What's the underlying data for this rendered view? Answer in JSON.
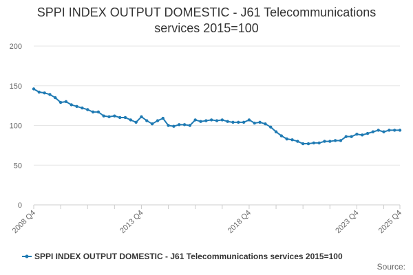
{
  "chart_data": {
    "type": "line",
    "title_lines": [
      "SPPI INDEX OUTPUT DOMESTIC - J61 Telecommunications",
      "services 2015=100"
    ],
    "ylim": [
      0,
      200
    ],
    "y_ticks": [
      0,
      50,
      100,
      150,
      200
    ],
    "x_tick_labels": [
      "2008 Q4",
      "2013 Q4",
      "2018 Q4",
      "2023 Q4",
      "2025 Q4"
    ],
    "x_tick_indices": [
      0,
      20,
      40,
      60,
      68
    ],
    "grid": true,
    "legend_position": "bottom",
    "series": [
      {
        "name": "SPPI INDEX OUTPUT DOMESTIC - J61 Telecommunications services 2015=100",
        "color": "#1f7ab3",
        "x": [
          "2008 Q4",
          "2009 Q1",
          "2009 Q2",
          "2009 Q3",
          "2009 Q4",
          "2010 Q1",
          "2010 Q2",
          "2010 Q3",
          "2010 Q4",
          "2011 Q1",
          "2011 Q2",
          "2011 Q3",
          "2011 Q4",
          "2012 Q1",
          "2012 Q2",
          "2012 Q3",
          "2012 Q4",
          "2013 Q1",
          "2013 Q2",
          "2013 Q3",
          "2013 Q4",
          "2014 Q1",
          "2014 Q2",
          "2014 Q3",
          "2014 Q4",
          "2015 Q1",
          "2015 Q2",
          "2015 Q3",
          "2015 Q4",
          "2016 Q1",
          "2016 Q2",
          "2016 Q3",
          "2016 Q4",
          "2017 Q1",
          "2017 Q2",
          "2017 Q3",
          "2017 Q4",
          "2018 Q1",
          "2018 Q2",
          "2018 Q3",
          "2018 Q4",
          "2019 Q1",
          "2019 Q2",
          "2019 Q3",
          "2019 Q4",
          "2020 Q1",
          "2020 Q2",
          "2020 Q3",
          "2020 Q4",
          "2021 Q1",
          "2021 Q2",
          "2021 Q3",
          "2021 Q4",
          "2022 Q1",
          "2022 Q2",
          "2022 Q3",
          "2022 Q4",
          "2023 Q1",
          "2023 Q2",
          "2023 Q3",
          "2023 Q4",
          "2024 Q1",
          "2024 Q2",
          "2024 Q3",
          "2024 Q4",
          "2025 Q1",
          "2025 Q2",
          "2025 Q3",
          "2025 Q4"
        ],
        "values": [
          146,
          142,
          141,
          139,
          135,
          129,
          130,
          126,
          124,
          122,
          120,
          117,
          117,
          112,
          111,
          112,
          110,
          110,
          107,
          104,
          111,
          106,
          102,
          106,
          109,
          100,
          99,
          101,
          101,
          100,
          107,
          105,
          106,
          107,
          106,
          107,
          105,
          104,
          104,
          104,
          107,
          103,
          104,
          102,
          98,
          92,
          87,
          83,
          82,
          80,
          77,
          77,
          78,
          78,
          80,
          80,
          81,
          81,
          86,
          86,
          89,
          88,
          90,
          92,
          94,
          92,
          94,
          94,
          94
        ]
      }
    ]
  },
  "source_label": "Source:"
}
